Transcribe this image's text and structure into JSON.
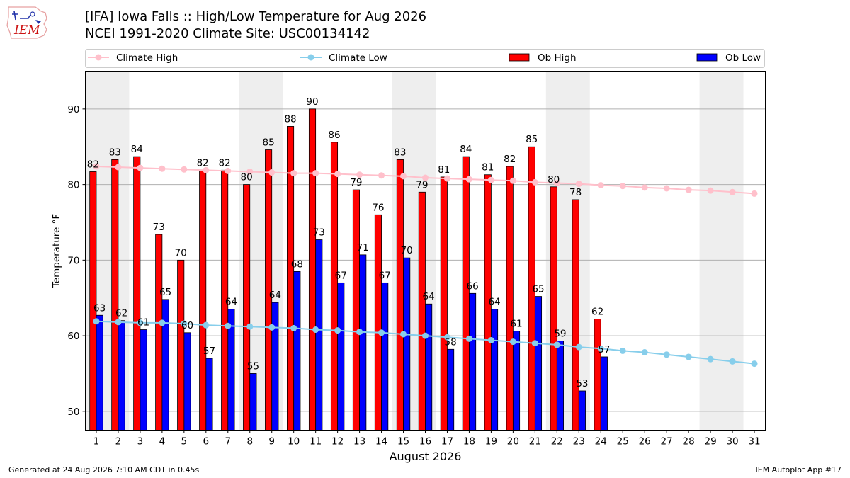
{
  "header": {
    "title_line1": "[IFA] Iowa Falls :: High/Low Temperature for Aug 2026",
    "title_line2": "NCEI 1991-2020 Climate Site: USC00134142",
    "logo_text": "IEM"
  },
  "footer": {
    "generated": "Generated at 24 Aug 2026 7:10 AM CDT in 0.45s",
    "app": "IEM Autoplot App #17"
  },
  "chart_data": {
    "type": "bar",
    "xlabel": "August 2026",
    "ylabel": "Temperature °F",
    "ylim": [
      47.5,
      95
    ],
    "yticks": [
      50,
      60,
      70,
      80,
      90
    ],
    "xlim": [
      0.5,
      31.5
    ],
    "days": [
      1,
      2,
      3,
      4,
      5,
      6,
      7,
      8,
      9,
      10,
      11,
      12,
      13,
      14,
      15,
      16,
      17,
      18,
      19,
      20,
      21,
      22,
      23,
      24,
      25,
      26,
      27,
      28,
      29,
      30,
      31
    ],
    "weekend_shading": [
      [
        1,
        2
      ],
      [
        8,
        9
      ],
      [
        15,
        16
      ],
      [
        22,
        23
      ],
      [
        29,
        30
      ]
    ],
    "grid": "horizontal",
    "legend_position": "top",
    "legend": [
      {
        "label": "Climate High",
        "kind": "line",
        "color": "#ffc0cb"
      },
      {
        "label": "Climate Low",
        "kind": "line",
        "color": "#87ceeb"
      },
      {
        "label": "Ob High",
        "kind": "bar",
        "color": "#ff0000"
      },
      {
        "label": "Ob Low",
        "kind": "bar",
        "color": "#0000ff"
      }
    ],
    "series": [
      {
        "name": "Ob High",
        "type": "bar",
        "color": "#ff0000",
        "values": [
          81.7,
          83.3,
          83.7,
          73.4,
          70.0,
          81.9,
          81.9,
          80.0,
          84.6,
          87.7,
          90.0,
          85.6,
          79.3,
          76.0,
          83.3,
          79.0,
          81.0,
          83.7,
          81.3,
          82.4,
          85.0,
          79.7,
          78.0,
          62.2
        ]
      },
      {
        "name": "Ob Low",
        "type": "bar",
        "color": "#0000ff",
        "values": [
          62.7,
          62.0,
          60.8,
          64.8,
          60.4,
          57.0,
          63.5,
          55.0,
          64.4,
          68.5,
          72.7,
          67.0,
          70.7,
          67.0,
          70.3,
          64.2,
          58.2,
          65.6,
          63.5,
          60.6,
          65.2,
          59.3,
          52.7,
          57.2
        ]
      },
      {
        "name": "Climate High",
        "type": "line",
        "color": "#ffc0cb",
        "values": [
          82.4,
          82.3,
          82.2,
          82.1,
          82.0,
          81.9,
          81.8,
          81.7,
          81.6,
          81.5,
          81.5,
          81.4,
          81.3,
          81.2,
          81.1,
          80.9,
          80.8,
          80.7,
          80.6,
          80.5,
          80.3,
          80.2,
          80.1,
          79.9,
          79.8,
          79.6,
          79.5,
          79.3,
          79.2,
          79.0,
          78.8
        ]
      },
      {
        "name": "Climate Low",
        "type": "line",
        "color": "#87ceeb",
        "values": [
          61.9,
          61.8,
          61.7,
          61.7,
          61.6,
          61.4,
          61.3,
          61.2,
          61.1,
          61.0,
          60.8,
          60.7,
          60.5,
          60.4,
          60.2,
          60.0,
          59.8,
          59.6,
          59.4,
          59.2,
          59.0,
          58.8,
          58.5,
          58.3,
          58.0,
          57.8,
          57.5,
          57.2,
          56.9,
          56.6,
          56.3
        ]
      }
    ],
    "labels_high": [
      "82",
      "83",
      "84",
      "73",
      "70",
      "82",
      "82",
      "80",
      "85",
      "88",
      "90",
      "86",
      "79",
      "76",
      "83",
      "79",
      "81",
      "84",
      "81",
      "82",
      "85",
      "80",
      "78",
      "62"
    ],
    "labels_low": [
      "63",
      "62",
      "61",
      "65",
      "60",
      "57",
      "64",
      "55",
      "64",
      "68",
      "73",
      "67",
      "71",
      "67",
      "70",
      "64",
      "58",
      "66",
      "64",
      "61",
      "65",
      "59",
      "53",
      "57"
    ]
  }
}
